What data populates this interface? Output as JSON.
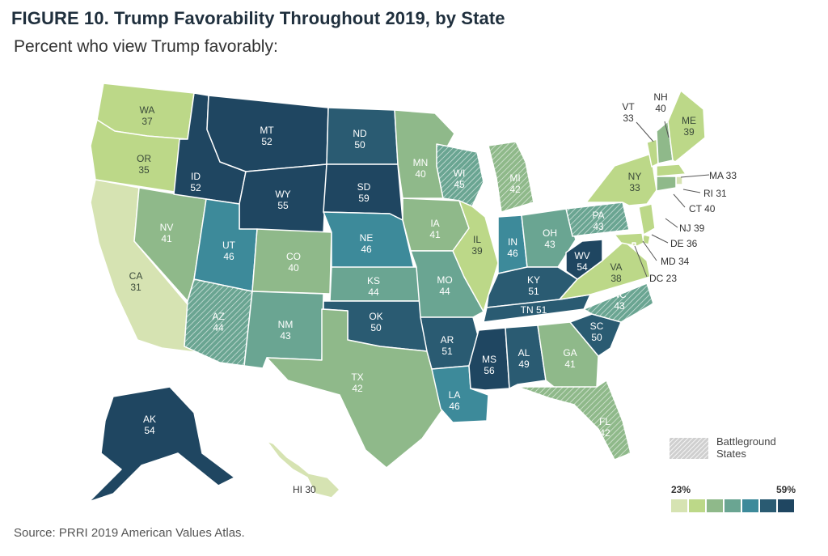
{
  "figure": {
    "title": "FIGURE 10.  Trump Favorability Throughout 2019, by State",
    "subtitle": "Percent who view Trump favorably:",
    "source": "Source: PRRI 2019 American Values Atlas."
  },
  "colors": {
    "bin1": "#d6e3b2",
    "bin2": "#bcd888",
    "bin3": "#8fb98a",
    "bin4": "#6aa592",
    "bin5": "#3d8a9a",
    "bin6": "#2a5b72",
    "bin7": "#1f4661"
  },
  "legend": {
    "hatch_label_line1": "Battleground",
    "hatch_label_line2": "States",
    "scale_min": "23%",
    "scale_max": "59%"
  },
  "chart_data": {
    "type": "choropleth",
    "metric": "Percent who view Trump favorably",
    "range": [
      23,
      59
    ],
    "states": [
      {
        "abbr": "WA",
        "value": 37
      },
      {
        "abbr": "OR",
        "value": 35
      },
      {
        "abbr": "CA",
        "value": 31
      },
      {
        "abbr": "NV",
        "value": 41
      },
      {
        "abbr": "ID",
        "value": 52
      },
      {
        "abbr": "MT",
        "value": 52
      },
      {
        "abbr": "WY",
        "value": 55
      },
      {
        "abbr": "UT",
        "value": 46
      },
      {
        "abbr": "AZ",
        "value": 44,
        "battleground": true
      },
      {
        "abbr": "CO",
        "value": 40
      },
      {
        "abbr": "NM",
        "value": 43
      },
      {
        "abbr": "ND",
        "value": 50
      },
      {
        "abbr": "SD",
        "value": 59
      },
      {
        "abbr": "NE",
        "value": 46
      },
      {
        "abbr": "KS",
        "value": 44
      },
      {
        "abbr": "OK",
        "value": 50
      },
      {
        "abbr": "TX",
        "value": 42
      },
      {
        "abbr": "MN",
        "value": 40
      },
      {
        "abbr": "IA",
        "value": 41
      },
      {
        "abbr": "MO",
        "value": 44
      },
      {
        "abbr": "AR",
        "value": 51
      },
      {
        "abbr": "LA",
        "value": 46
      },
      {
        "abbr": "WI",
        "value": 45,
        "battleground": true
      },
      {
        "abbr": "IL",
        "value": 39
      },
      {
        "abbr": "MI",
        "value": 42,
        "battleground": true
      },
      {
        "abbr": "IN",
        "value": 46
      },
      {
        "abbr": "OH",
        "value": 43
      },
      {
        "abbr": "KY",
        "value": 51
      },
      {
        "abbr": "TN",
        "value": 51
      },
      {
        "abbr": "MS",
        "value": 56
      },
      {
        "abbr": "AL",
        "value": 49
      },
      {
        "abbr": "GA",
        "value": 41
      },
      {
        "abbr": "FL",
        "value": 42,
        "battleground": true
      },
      {
        "abbr": "SC",
        "value": 50
      },
      {
        "abbr": "NC",
        "value": 43,
        "battleground": true
      },
      {
        "abbr": "VA",
        "value": 38
      },
      {
        "abbr": "WV",
        "value": 54
      },
      {
        "abbr": "PA",
        "value": 43,
        "battleground": true
      },
      {
        "abbr": "NY",
        "value": 33
      },
      {
        "abbr": "VT",
        "value": 33
      },
      {
        "abbr": "NH",
        "value": 40
      },
      {
        "abbr": "ME",
        "value": 39
      },
      {
        "abbr": "MA",
        "value": 33
      },
      {
        "abbr": "RI",
        "value": 31
      },
      {
        "abbr": "CT",
        "value": 40
      },
      {
        "abbr": "NJ",
        "value": 39
      },
      {
        "abbr": "DE",
        "value": 36
      },
      {
        "abbr": "MD",
        "value": 34
      },
      {
        "abbr": "DC",
        "value": 23
      },
      {
        "abbr": "AK",
        "value": 54
      },
      {
        "abbr": "HI",
        "value": 30
      }
    ]
  }
}
